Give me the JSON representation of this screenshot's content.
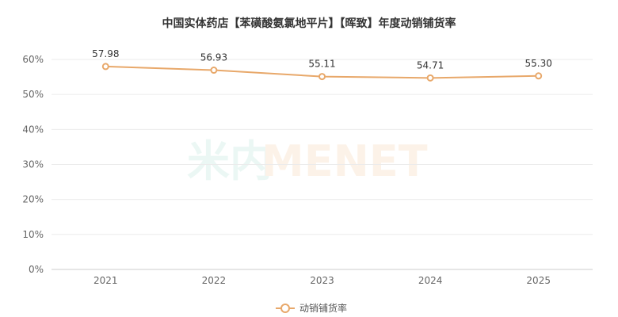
{
  "chart_data": {
    "type": "line",
    "title": "中国实体药店【苯磺酸氨氯地平片】【晖致】年度动销铺货率",
    "categories": [
      "2021",
      "2022",
      "2023",
      "2024",
      "2025"
    ],
    "series": [
      {
        "name": "动销铺货率",
        "values": [
          57.98,
          56.93,
          55.11,
          54.71,
          55.3
        ],
        "labels": [
          "57.98",
          "56.93",
          "55.11",
          "54.71",
          "55.30"
        ]
      }
    ],
    "ylim": [
      0,
      60
    ],
    "yticks": [
      0,
      10,
      20,
      30,
      40,
      50,
      60
    ],
    "ytick_labels": [
      "0%",
      "10%",
      "20%",
      "30%",
      "40%",
      "50%",
      "60%"
    ],
    "xlabel": "",
    "ylabel": "",
    "grid": true,
    "legend": "bottom-center",
    "colors": {
      "line": "#E8A86A",
      "grid": "#EBEBEB",
      "axis": "#CCCCCC"
    }
  },
  "watermark": {
    "text_a": "米内",
    "text_b": "MENET"
  }
}
